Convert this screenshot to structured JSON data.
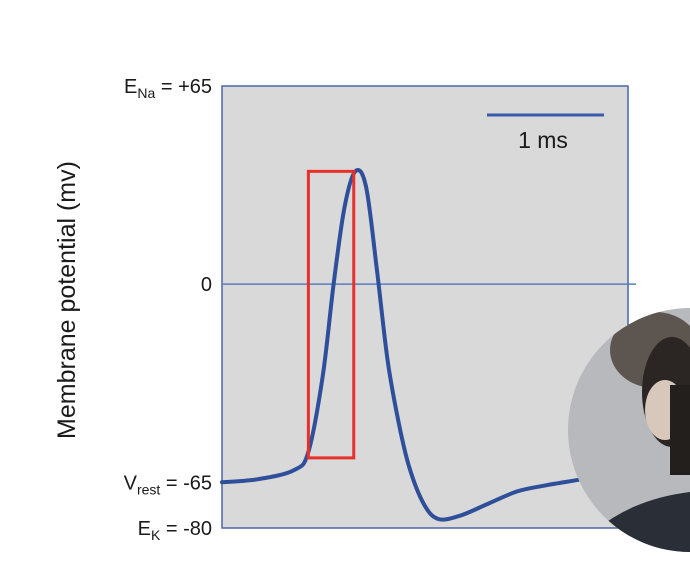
{
  "chart_data": {
    "type": "line",
    "title": "",
    "xlabel": "",
    "ylabel": "Membrane potential (mv)",
    "ylim": [
      -80,
      65
    ],
    "grid": false,
    "scale_bar": {
      "label": "1 ms"
    },
    "y_labels": [
      {
        "main": "E",
        "sub": "Na",
        "rest": " = +65",
        "value": 65
      },
      {
        "main": "0",
        "sub": "",
        "rest": "",
        "value": 0
      },
      {
        "main": "V",
        "sub": "rest",
        "rest": " = -65",
        "value": -65
      },
      {
        "main": "E",
        "sub": "K",
        "rest": " = -80",
        "value": -80
      }
    ],
    "zero_line": 0,
    "series": [
      {
        "x": [
          0,
          0.5,
          1.0,
          1.2,
          1.4,
          1.55,
          1.7,
          1.85,
          2.0,
          2.15,
          2.3,
          2.45,
          2.6,
          2.8,
          3.0,
          3.3,
          3.7,
          4.1,
          4.5,
          5.0,
          5.5
        ],
        "values": [
          -65,
          -64,
          -61,
          -55,
          -30,
          0,
          25,
          37,
          32,
          5,
          -25,
          -45,
          -60,
          -72,
          -77,
          -76,
          -72,
          -68,
          -66,
          -64,
          -62
        ]
      }
    ],
    "highlight": {
      "x0": 1.2,
      "x1": 1.83,
      "y0": -57,
      "y1": 37,
      "color": "#e8302a"
    },
    "colors": {
      "line": "#2f4f9a",
      "plot_bg": "#d9d9d9",
      "plot_border": "#4a66a8",
      "zero_line": "#5a7cc0"
    }
  },
  "presenter": {
    "icon": "presenter-webcam-photo"
  }
}
